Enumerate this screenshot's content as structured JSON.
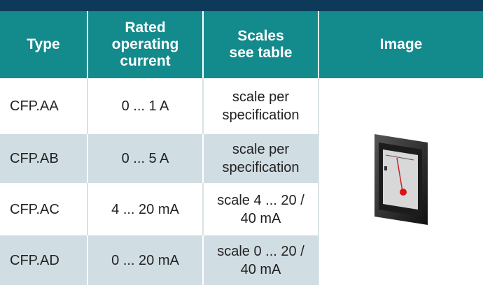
{
  "table": {
    "header": [
      "Type",
      "Rated operating current",
      "Scales see table",
      "Image"
    ],
    "rows": [
      [
        "CFP.AA",
        "0 ... 1 A",
        "scale per specification"
      ],
      [
        "CFP.AB",
        "0 ... 5 A",
        "scale per specification"
      ],
      [
        "CFP.AC",
        "4 ... 20 mA",
        "scale 4 ... 20 / 40 mA"
      ],
      [
        "CFP.AD",
        "0 ... 20 mA",
        "scale 0 ... 20 / 40 mA"
      ]
    ]
  }
}
